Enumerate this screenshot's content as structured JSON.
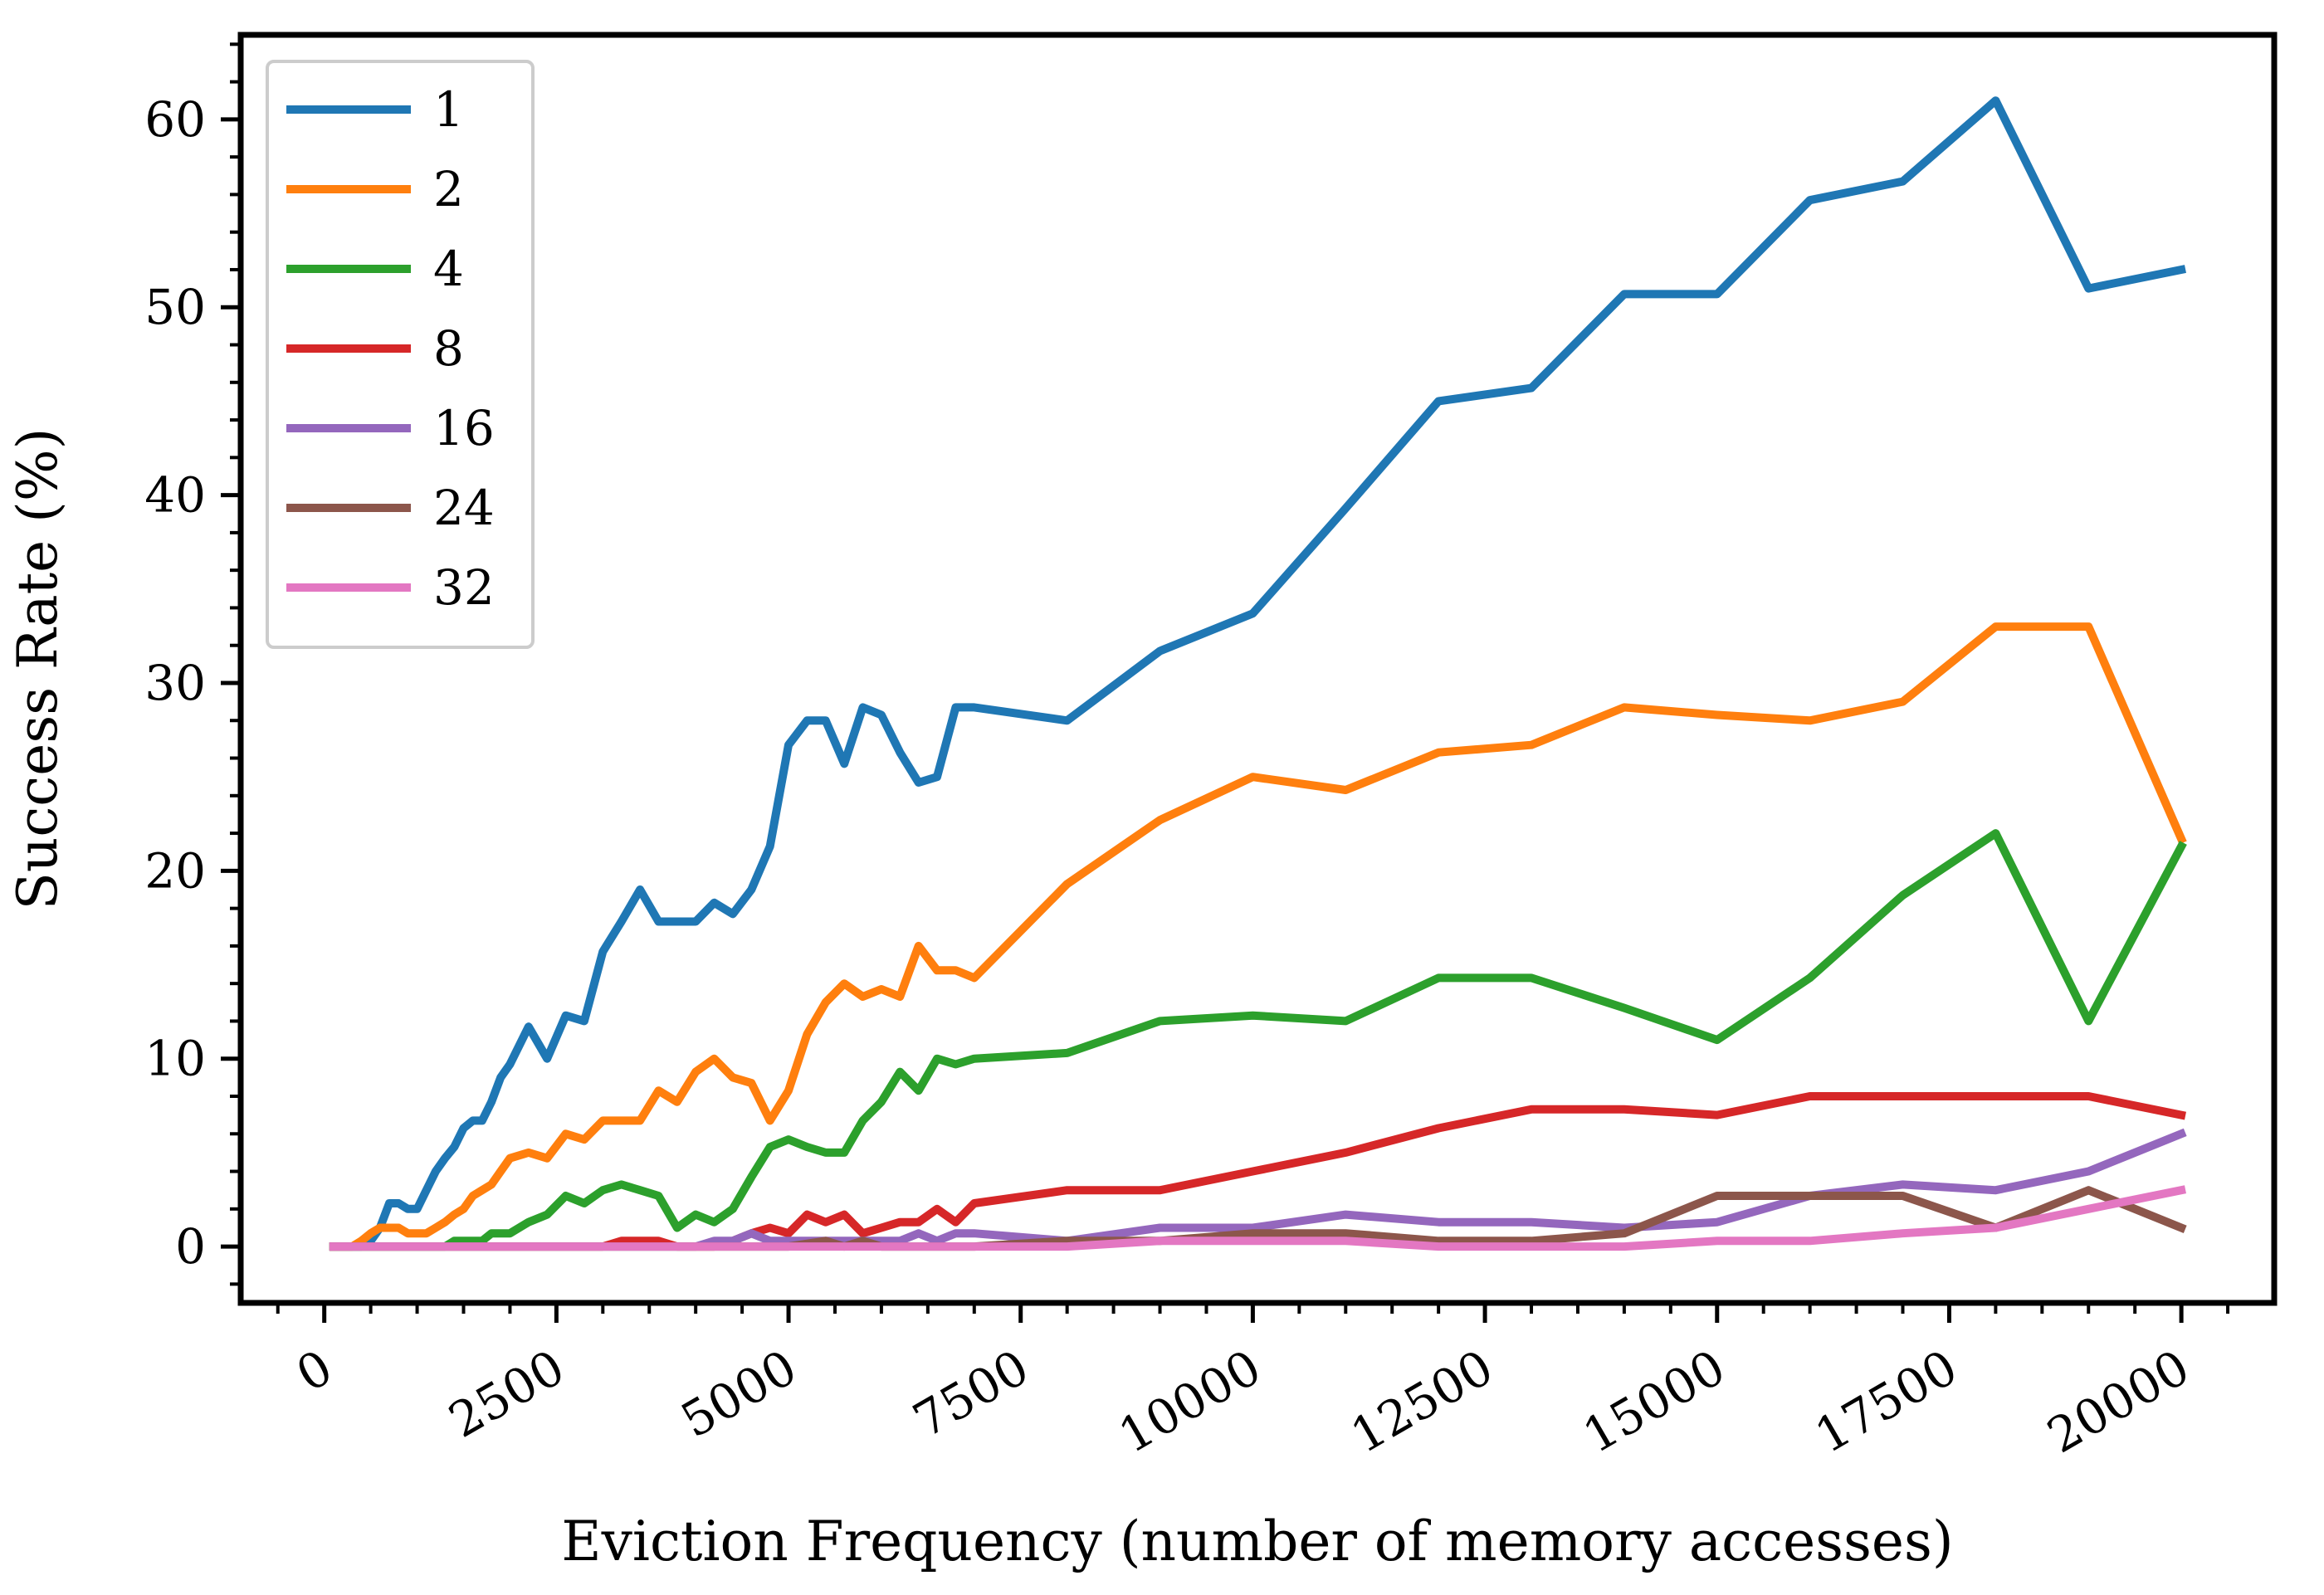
{
  "chart_data": {
    "type": "line",
    "title": "",
    "xlabel": "Eviction Frequency (number of memory accesses)",
    "ylabel": "Success Rate (%)",
    "xlim": [
      -900,
      21000
    ],
    "ylim": [
      -3.0,
      64.5
    ],
    "xticks": [
      0,
      2500,
      5000,
      7500,
      10000,
      12500,
      15000,
      17500,
      20000
    ],
    "xtick_labels": [
      "0",
      "2500",
      "5000",
      "7500",
      "10000",
      "12500",
      "15000",
      "17500",
      "20000"
    ],
    "yticks": [
      0,
      10,
      20,
      30,
      40,
      50,
      60
    ],
    "ytick_labels": [
      "0",
      "10",
      "20",
      "30",
      "40",
      "50",
      "60"
    ],
    "xticklabel_rotation": 30,
    "grid": false,
    "legend_position": "top-left",
    "series": [
      {
        "name": "1",
        "color": "#1f77b4",
        "x": [
          100,
          200,
          300,
          400,
          500,
          600,
          700,
          800,
          900,
          1000,
          1100,
          1200,
          1300,
          1400,
          1500,
          1600,
          1700,
          1800,
          1900,
          2000,
          2200,
          2400,
          2600,
          2800,
          3000,
          3200,
          3400,
          3600,
          3800,
          4000,
          4200,
          4400,
          4600,
          4800,
          5000,
          5200,
          5400,
          5600,
          5800,
          6000,
          6200,
          6400,
          6600,
          6800,
          7000,
          8000,
          9000,
          10000,
          11000,
          12000,
          13000,
          14000,
          15000,
          16000,
          17000,
          18000,
          19000,
          20000
        ],
        "values": [
          0,
          0,
          0,
          0,
          0.3,
          1.0,
          2.3,
          2.3,
          2.0,
          2.0,
          3.0,
          4.0,
          4.7,
          5.3,
          6.3,
          6.7,
          6.7,
          7.7,
          9.0,
          9.7,
          11.7,
          10.0,
          12.3,
          12.0,
          15.7,
          17.3,
          19.0,
          17.3,
          17.3,
          17.3,
          18.3,
          17.7,
          19.0,
          21.3,
          26.7,
          28.0,
          28.0,
          25.7,
          28.7,
          28.3,
          26.3,
          24.7,
          25.0,
          28.7,
          28.7,
          28.0,
          31.7,
          33.7,
          39.3,
          45.0,
          45.7,
          50.7,
          50.7,
          55.7,
          56.7,
          61.0,
          51.0,
          52.0
        ]
      },
      {
        "name": "2",
        "color": "#ff7f0e",
        "x": [
          100,
          200,
          300,
          400,
          500,
          600,
          700,
          800,
          900,
          1000,
          1100,
          1200,
          1300,
          1400,
          1500,
          1600,
          1700,
          1800,
          1900,
          2000,
          2200,
          2400,
          2600,
          2800,
          3000,
          3200,
          3400,
          3600,
          3800,
          4000,
          4200,
          4400,
          4600,
          4800,
          5000,
          5200,
          5400,
          5600,
          5800,
          6000,
          6200,
          6400,
          6600,
          6800,
          7000,
          8000,
          9000,
          10000,
          11000,
          12000,
          13000,
          14000,
          15000,
          16000,
          17000,
          18000,
          19000,
          20000
        ],
        "values": [
          0,
          0,
          0,
          0.3,
          0.7,
          1.0,
          1.0,
          1.0,
          0.7,
          0.7,
          0.7,
          1.0,
          1.3,
          1.7,
          2.0,
          2.7,
          3.0,
          3.3,
          4.0,
          4.7,
          5.0,
          4.7,
          6.0,
          5.7,
          6.7,
          6.7,
          6.7,
          8.3,
          7.7,
          9.3,
          10.0,
          9.0,
          8.7,
          6.7,
          8.3,
          11.3,
          13.0,
          14.0,
          13.3,
          13.7,
          13.3,
          16.0,
          14.7,
          14.7,
          14.3,
          19.3,
          22.7,
          25.0,
          24.3,
          26.3,
          26.7,
          28.7,
          28.3,
          28.0,
          29.0,
          33.0,
          33.0,
          21.7
        ]
      },
      {
        "name": "4",
        "color": "#2ca02c",
        "x": [
          100,
          200,
          300,
          400,
          500,
          600,
          700,
          800,
          900,
          1000,
          1100,
          1200,
          1300,
          1400,
          1500,
          1600,
          1700,
          1800,
          1900,
          2000,
          2200,
          2400,
          2600,
          2800,
          3000,
          3200,
          3400,
          3600,
          3800,
          4000,
          4200,
          4400,
          4600,
          4800,
          5000,
          5200,
          5400,
          5600,
          5800,
          6000,
          6200,
          6400,
          6600,
          6800,
          7000,
          8000,
          9000,
          10000,
          11000,
          12000,
          13000,
          14000,
          15000,
          16000,
          17000,
          18000,
          19000,
          20000
        ],
        "values": [
          0,
          0,
          0,
          0,
          0,
          0,
          0,
          0,
          0,
          0,
          0,
          0,
          0,
          0.3,
          0.3,
          0.3,
          0.3,
          0.7,
          0.7,
          0.7,
          1.3,
          1.7,
          2.7,
          2.3,
          3.0,
          3.3,
          3.0,
          2.7,
          1.0,
          1.7,
          1.3,
          2.0,
          3.7,
          5.3,
          5.7,
          5.3,
          5.0,
          5.0,
          6.7,
          7.7,
          9.3,
          8.3,
          10.0,
          9.7,
          10.0,
          10.3,
          12.0,
          12.3,
          12.0,
          14.3,
          14.3,
          12.7,
          11.0,
          14.3,
          18.7,
          22.0,
          12.0,
          21.3
        ]
      },
      {
        "name": "8",
        "color": "#d62728",
        "x": [
          100,
          500,
          1000,
          2000,
          3000,
          3200,
          3400,
          3600,
          3800,
          4000,
          4200,
          4400,
          4600,
          4800,
          5000,
          5200,
          5400,
          5600,
          5800,
          6000,
          6200,
          6400,
          6600,
          6800,
          7000,
          8000,
          9000,
          10000,
          11000,
          12000,
          13000,
          14000,
          15000,
          16000,
          17000,
          18000,
          19000,
          20000
        ],
        "values": [
          0,
          0,
          0,
          0,
          0,
          0.3,
          0.3,
          0.3,
          0,
          0,
          0,
          0.3,
          0.7,
          1.0,
          0.7,
          1.7,
          1.3,
          1.7,
          0.7,
          1.0,
          1.3,
          1.3,
          2.0,
          1.3,
          2.3,
          3.0,
          3.0,
          4.0,
          5.0,
          6.3,
          7.3,
          7.3,
          7.0,
          8.0,
          8.0,
          8.0,
          8.0,
          7.0
        ]
      },
      {
        "name": "16",
        "color": "#9467bd",
        "x": [
          100,
          1000,
          2000,
          3000,
          4000,
          4200,
          4400,
          4600,
          4800,
          5000,
          5200,
          5400,
          5600,
          5800,
          6000,
          6200,
          6400,
          6600,
          6800,
          7000,
          8000,
          9000,
          10000,
          11000,
          12000,
          13000,
          14000,
          15000,
          16000,
          17000,
          18000,
          19000,
          20000
        ],
        "values": [
          0,
          0,
          0,
          0,
          0,
          0.3,
          0.3,
          0.7,
          0.3,
          0.3,
          0.3,
          0.3,
          0.3,
          0.3,
          0.3,
          0.3,
          0.7,
          0.3,
          0.7,
          0.7,
          0.3,
          1.0,
          1.0,
          1.7,
          1.3,
          1.3,
          1.0,
          1.3,
          2.7,
          3.3,
          3.0,
          4.0,
          6.0
        ]
      },
      {
        "name": "24",
        "color": "#8c564b",
        "x": [
          100,
          1000,
          2000,
          3000,
          4000,
          5000,
          5400,
          5600,
          5800,
          6000,
          7000,
          8000,
          9000,
          10000,
          11000,
          12000,
          13000,
          14000,
          15000,
          16000,
          17000,
          18000,
          19000,
          20000
        ],
        "values": [
          0,
          0,
          0,
          0,
          0,
          0,
          0.3,
          0,
          0.3,
          0,
          0,
          0.3,
          0.3,
          0.7,
          0.7,
          0.3,
          0.3,
          0.7,
          2.7,
          2.7,
          2.7,
          1.0,
          3.0,
          1.0
        ]
      },
      {
        "name": "32",
        "color": "#e377c2",
        "x": [
          100,
          1000,
          2000,
          3000,
          4000,
          5000,
          6000,
          7000,
          8000,
          9000,
          10000,
          11000,
          12000,
          13000,
          14000,
          15000,
          16000,
          17000,
          18000,
          19000,
          20000
        ],
        "values": [
          0,
          0,
          0,
          0,
          0,
          0,
          0,
          0,
          0,
          0.3,
          0.3,
          0.3,
          0,
          0,
          0,
          0.3,
          0.3,
          0.7,
          1.0,
          2.0,
          3.0
        ]
      }
    ]
  }
}
